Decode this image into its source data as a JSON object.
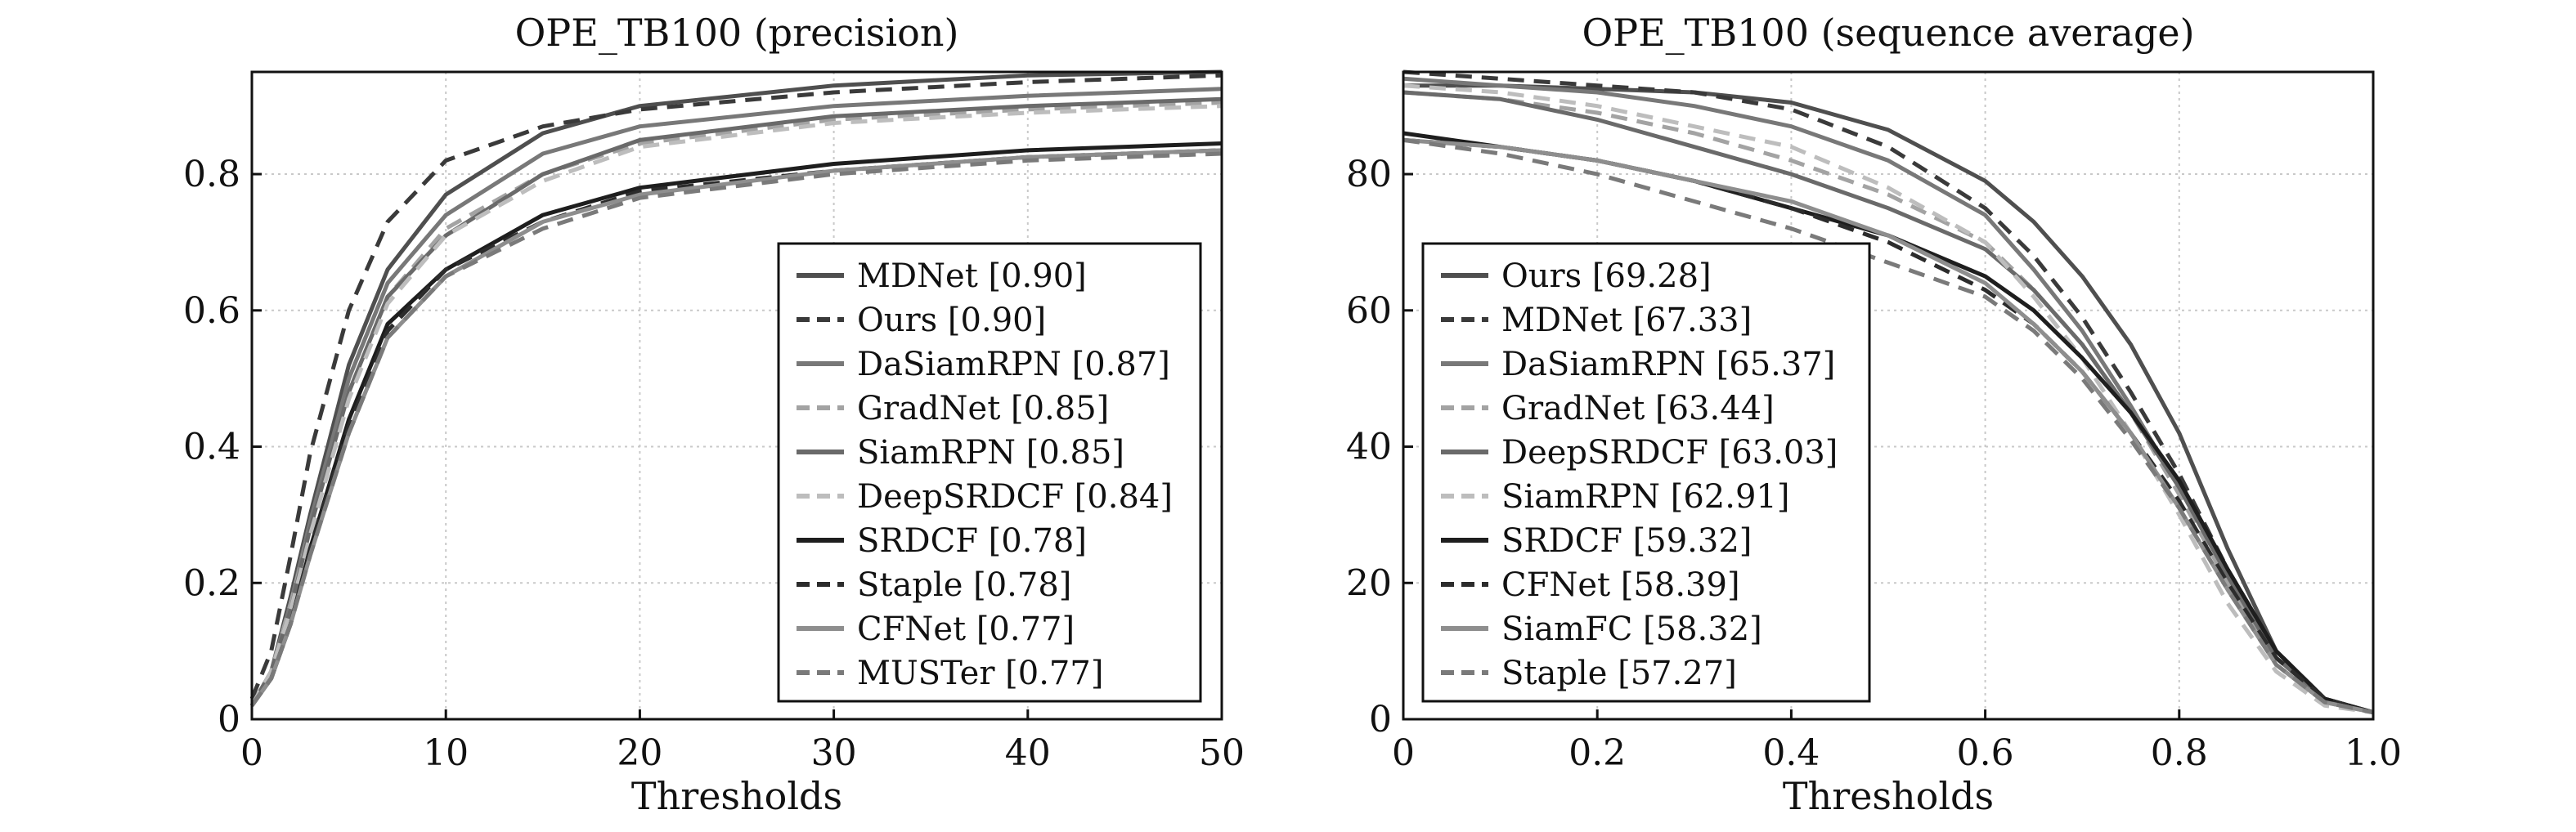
{
  "chart_data": [
    {
      "type": "line",
      "title": "OPE_TB100 (precision)",
      "xlabel": "Thresholds",
      "ylabel": "",
      "xlim": [
        0,
        50
      ],
      "ylim": [
        0,
        0.95
      ],
      "xticks": [
        0,
        10,
        20,
        30,
        40,
        50
      ],
      "yticks": [
        0,
        0.2,
        0.4,
        0.6,
        0.8
      ],
      "xtick_labels": [
        "0",
        "10",
        "20",
        "30",
        "40",
        "50"
      ],
      "ytick_labels": [
        "0",
        "0.2",
        "0.4",
        "0.6",
        "0.8"
      ],
      "grid": true,
      "legend_position": "lower-right",
      "series": [
        {
          "name": "MDNet [0.90]",
          "color": "#4f4f4f",
          "dash": "solid",
          "x": [
            0,
            1,
            2,
            3,
            5,
            7,
            10,
            15,
            20,
            30,
            40,
            50
          ],
          "y": [
            0.02,
            0.07,
            0.18,
            0.3,
            0.52,
            0.66,
            0.77,
            0.86,
            0.9,
            0.93,
            0.945,
            0.95
          ]
        },
        {
          "name": "Ours [0.90]",
          "color": "#3a3a3a",
          "dash": "dashed",
          "x": [
            0,
            1,
            2,
            3,
            5,
            7,
            10,
            15,
            20,
            30,
            40,
            50
          ],
          "y": [
            0.03,
            0.1,
            0.24,
            0.39,
            0.6,
            0.73,
            0.82,
            0.87,
            0.895,
            0.92,
            0.935,
            0.945
          ]
        },
        {
          "name": "DaSiamRPN [0.87]",
          "color": "#787878",
          "dash": "solid",
          "x": [
            0,
            1,
            2,
            3,
            5,
            7,
            10,
            15,
            20,
            30,
            40,
            50
          ],
          "y": [
            0.02,
            0.07,
            0.17,
            0.29,
            0.5,
            0.64,
            0.74,
            0.83,
            0.87,
            0.9,
            0.915,
            0.925
          ]
        },
        {
          "name": "GradNet [0.85]",
          "color": "#a3a3a3",
          "dash": "dashed",
          "x": [
            0,
            1,
            2,
            3,
            5,
            7,
            10,
            15,
            20,
            30,
            40,
            50
          ],
          "y": [
            0.02,
            0.07,
            0.17,
            0.28,
            0.48,
            0.62,
            0.72,
            0.8,
            0.845,
            0.88,
            0.895,
            0.905
          ]
        },
        {
          "name": "SiamRPN [0.85]",
          "color": "#6a6a6a",
          "dash": "solid",
          "x": [
            0,
            1,
            2,
            3,
            5,
            7,
            10,
            15,
            20,
            30,
            40,
            50
          ],
          "y": [
            0.02,
            0.07,
            0.16,
            0.28,
            0.48,
            0.62,
            0.71,
            0.8,
            0.85,
            0.885,
            0.9,
            0.91
          ]
        },
        {
          "name": "DeepSRDCF [0.84]",
          "color": "#bdbdbd",
          "dash": "dashed",
          "x": [
            0,
            1,
            2,
            3,
            5,
            7,
            10,
            15,
            20,
            30,
            40,
            50
          ],
          "y": [
            0.02,
            0.07,
            0.16,
            0.27,
            0.47,
            0.61,
            0.71,
            0.79,
            0.84,
            0.875,
            0.89,
            0.9
          ]
        },
        {
          "name": "SRDCF [0.78]",
          "color": "#1e1e1e",
          "dash": "solid",
          "x": [
            0,
            1,
            2,
            3,
            5,
            7,
            10,
            15,
            20,
            30,
            40,
            50
          ],
          "y": [
            0.02,
            0.06,
            0.14,
            0.25,
            0.44,
            0.58,
            0.66,
            0.74,
            0.78,
            0.815,
            0.835,
            0.845
          ]
        },
        {
          "name": "Staple [0.78]",
          "color": "#2c2c2c",
          "dash": "dashed",
          "x": [
            0,
            1,
            2,
            3,
            5,
            7,
            10,
            15,
            20,
            30,
            40,
            50
          ],
          "y": [
            0.02,
            0.06,
            0.14,
            0.25,
            0.43,
            0.57,
            0.66,
            0.73,
            0.775,
            0.805,
            0.825,
            0.835
          ]
        },
        {
          "name": "CFNet [0.77]",
          "color": "#8e8e8e",
          "dash": "solid",
          "x": [
            0,
            1,
            2,
            3,
            5,
            7,
            10,
            15,
            20,
            30,
            40,
            50
          ],
          "y": [
            0.02,
            0.06,
            0.14,
            0.24,
            0.42,
            0.56,
            0.65,
            0.73,
            0.77,
            0.805,
            0.825,
            0.835
          ]
        },
        {
          "name": "MUSTer [0.77]",
          "color": "#7a7a7a",
          "dash": "dashed",
          "x": [
            0,
            1,
            2,
            3,
            5,
            7,
            10,
            15,
            20,
            30,
            40,
            50
          ],
          "y": [
            0.02,
            0.06,
            0.14,
            0.24,
            0.42,
            0.56,
            0.65,
            0.72,
            0.765,
            0.8,
            0.82,
            0.83
          ]
        }
      ]
    },
    {
      "type": "line",
      "title": "OPE_TB100 (sequence average)",
      "xlabel": "Thresholds",
      "ylabel": "",
      "xlim": [
        0,
        1.0
      ],
      "ylim": [
        0,
        95
      ],
      "xticks": [
        0,
        0.2,
        0.4,
        0.6,
        0.8,
        1.0
      ],
      "yticks": [
        0,
        20,
        40,
        60,
        80
      ],
      "xtick_labels": [
        "0",
        "0.2",
        "0.4",
        "0.6",
        "0.8",
        "1.0"
      ],
      "ytick_labels": [
        "0",
        "20",
        "40",
        "60",
        "80"
      ],
      "grid": true,
      "legend_position": "lower-left",
      "series": [
        {
          "name": "Ours [69.28]",
          "color": "#4f4f4f",
          "dash": "solid",
          "x": [
            0,
            0.1,
            0.2,
            0.3,
            0.4,
            0.5,
            0.6,
            0.65,
            0.7,
            0.75,
            0.8,
            0.85,
            0.9,
            0.95,
            1.0
          ],
          "y": [
            93,
            93,
            92.5,
            92,
            90.5,
            86.5,
            79,
            73,
            65,
            55,
            42,
            25,
            10,
            3,
            1
          ]
        },
        {
          "name": "MDNet [67.33]",
          "color": "#3a3a3a",
          "dash": "dashed",
          "x": [
            0,
            0.1,
            0.2,
            0.3,
            0.4,
            0.5,
            0.6,
            0.65,
            0.7,
            0.75,
            0.8,
            0.85,
            0.9,
            0.95,
            1.0
          ],
          "y": [
            95,
            94,
            93,
            92,
            89.5,
            84,
            75,
            68,
            59,
            48,
            36,
            22,
            10,
            3,
            1
          ]
        },
        {
          "name": "DaSiamRPN [65.37]",
          "color": "#787878",
          "dash": "solid",
          "x": [
            0,
            0.1,
            0.2,
            0.3,
            0.4,
            0.5,
            0.6,
            0.65,
            0.7,
            0.75,
            0.8,
            0.85,
            0.9,
            0.95,
            1.0
          ],
          "y": [
            94,
            93,
            92,
            90,
            87,
            82,
            74,
            66,
            57,
            46,
            34,
            21,
            9,
            3,
            1
          ]
        },
        {
          "name": "GradNet [63.44]",
          "color": "#a3a3a3",
          "dash": "dashed",
          "x": [
            0,
            0.1,
            0.2,
            0.3,
            0.4,
            0.5,
            0.6,
            0.65,
            0.7,
            0.75,
            0.8,
            0.85,
            0.9,
            0.95,
            1.0
          ],
          "y": [
            92,
            91,
            89,
            86,
            82,
            77,
            70,
            63,
            55,
            45,
            33,
            20,
            8,
            2.5,
            1
          ]
        },
        {
          "name": "DeepSRDCF [63.03]",
          "color": "#6a6a6a",
          "dash": "solid",
          "x": [
            0,
            0.1,
            0.2,
            0.3,
            0.4,
            0.5,
            0.6,
            0.65,
            0.7,
            0.75,
            0.8,
            0.85,
            0.9,
            0.95,
            1.0
          ],
          "y": [
            92,
            91,
            88,
            84,
            80,
            75,
            69,
            63,
            55,
            45,
            34,
            21,
            9,
            3,
            1
          ]
        },
        {
          "name": "SiamRPN [62.91]",
          "color": "#bdbdbd",
          "dash": "dashed",
          "x": [
            0,
            0.1,
            0.2,
            0.3,
            0.4,
            0.5,
            0.6,
            0.65,
            0.7,
            0.75,
            0.8,
            0.85,
            0.9,
            0.95,
            1.0
          ],
          "y": [
            93,
            92,
            90,
            87,
            84,
            78,
            70,
            62,
            53,
            42,
            30,
            17,
            7,
            2,
            1
          ]
        },
        {
          "name": "SRDCF [59.32]",
          "color": "#1e1e1e",
          "dash": "solid",
          "x": [
            0,
            0.1,
            0.2,
            0.3,
            0.4,
            0.5,
            0.6,
            0.65,
            0.7,
            0.75,
            0.8,
            0.85,
            0.9,
            0.95,
            1.0
          ],
          "y": [
            86,
            84,
            82,
            79,
            75,
            71,
            65,
            60,
            53,
            45,
            35,
            22,
            10,
            3,
            1
          ]
        },
        {
          "name": "CFNet [58.39]",
          "color": "#2c2c2c",
          "dash": "dashed",
          "x": [
            0,
            0.1,
            0.2,
            0.3,
            0.4,
            0.5,
            0.6,
            0.65,
            0.7,
            0.75,
            0.8,
            0.85,
            0.9,
            0.95,
            1.0
          ],
          "y": [
            85,
            84,
            82,
            79,
            75,
            70,
            63,
            58,
            51,
            42,
            32,
            20,
            9,
            3,
            1
          ]
        },
        {
          "name": "SiamFC [58.32]",
          "color": "#8e8e8e",
          "dash": "solid",
          "x": [
            0,
            0.1,
            0.2,
            0.3,
            0.4,
            0.5,
            0.6,
            0.65,
            0.7,
            0.75,
            0.8,
            0.85,
            0.9,
            0.95,
            1.0
          ],
          "y": [
            85,
            84,
            82,
            79,
            76,
            71,
            64,
            58,
            51,
            42,
            31,
            19,
            8,
            2.5,
            1
          ]
        },
        {
          "name": "Staple [57.27]",
          "color": "#7a7a7a",
          "dash": "dashed",
          "x": [
            0,
            0.1,
            0.2,
            0.3,
            0.4,
            0.5,
            0.6,
            0.65,
            0.7,
            0.75,
            0.8,
            0.85,
            0.9,
            0.95,
            1.0
          ],
          "y": [
            85,
            83,
            80,
            76,
            72,
            67,
            62,
            57,
            50,
            41,
            31,
            19,
            8,
            2.5,
            1
          ]
        }
      ]
    }
  ]
}
